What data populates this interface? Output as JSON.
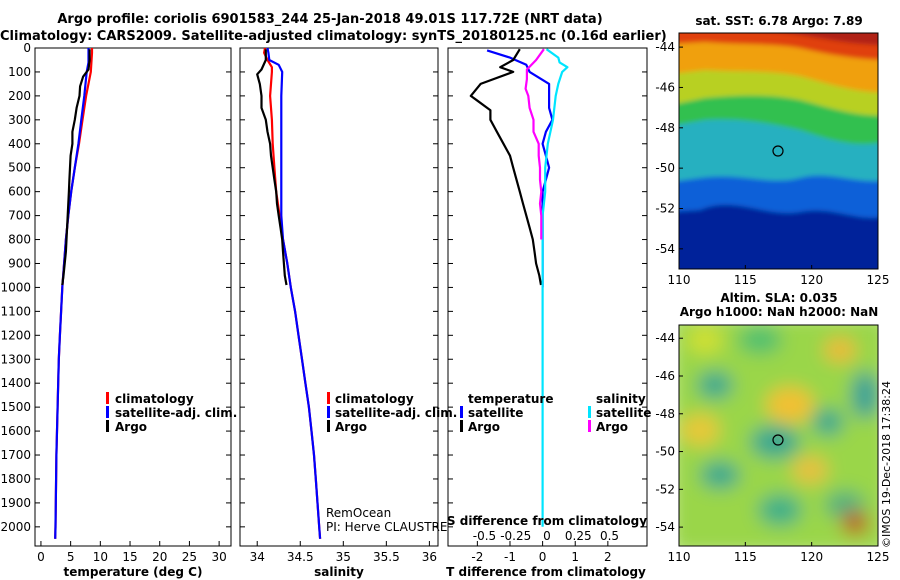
{
  "title_line1": "Argo profile: coriolis 6901583_244 25-Jan-2018 49.01S 117.72E (NRT data)",
  "title_line2": "Climatology: CARS2009. Satellite-adjusted climatology: synTS_20180125.nc (0.16d earlier)",
  "colors": {
    "climatology": "#ff0000",
    "satellite": "#0000ff",
    "argo": "#000000",
    "salinity_satellite": "#00e5ff",
    "salinity_argo": "#ff00ff"
  },
  "depth_axis": {
    "ticks": [
      0,
      100,
      200,
      300,
      400,
      500,
      600,
      700,
      800,
      900,
      1000,
      1100,
      1200,
      1300,
      1400,
      1500,
      1600,
      1700,
      1800,
      1900,
      2000
    ],
    "range": [
      0,
      2080
    ]
  },
  "chart_data": [
    {
      "type": "line",
      "id": "temperature",
      "xlabel": "temperature (deg C)",
      "xlim": [
        -1,
        32
      ],
      "xticks": [
        "0",
        "5",
        "10",
        "15",
        "20",
        "25",
        "30"
      ],
      "xtick_values": [
        0,
        5,
        10,
        15,
        20,
        25,
        30
      ],
      "legend": [
        "climatology",
        "satellite-adj. clim.",
        "Argo"
      ],
      "series": [
        {
          "name": "climatology",
          "color_key": "climatology",
          "depth": [
            0,
            20,
            60,
            100,
            200,
            300,
            400,
            500,
            600,
            700,
            800,
            900,
            1000,
            1100,
            1200,
            1300,
            1400,
            1500,
            1600,
            1700,
            1800,
            1900,
            2000,
            2050
          ],
          "values": [
            8.6,
            8.6,
            8.5,
            8.4,
            7.6,
            7.0,
            6.4,
            5.7,
            5.1,
            4.6,
            4.2,
            3.9,
            3.6,
            3.4,
            3.2,
            3.0,
            2.9,
            2.8,
            2.7,
            2.6,
            2.55,
            2.5,
            2.45,
            2.4
          ]
        },
        {
          "name": "satellite-adj. clim.",
          "color_key": "satellite",
          "depth": [
            0,
            20,
            60,
            100,
            200,
            300,
            400,
            500,
            600,
            700,
            800,
            900,
            1000,
            1100,
            1200,
            1300,
            1400,
            1500,
            1600,
            1700,
            1800,
            1900,
            2000,
            2050
          ],
          "values": [
            8.0,
            8.0,
            8.0,
            7.7,
            7.3,
            6.8,
            6.3,
            5.7,
            5.1,
            4.6,
            4.2,
            3.9,
            3.6,
            3.4,
            3.2,
            3.0,
            2.9,
            2.8,
            2.7,
            2.6,
            2.55,
            2.5,
            2.45,
            2.4
          ]
        },
        {
          "name": "Argo",
          "color_key": "argo",
          "depth": [
            5,
            50,
            90,
            120,
            160,
            200,
            250,
            300,
            350,
            400,
            450,
            500,
            550,
            600,
            650,
            700,
            750,
            800,
            850,
            900,
            950,
            990
          ],
          "values": [
            8.2,
            8.2,
            8.0,
            7.1,
            6.6,
            6.5,
            6.0,
            5.7,
            5.3,
            5.3,
            5.0,
            4.9,
            4.8,
            4.7,
            4.6,
            4.5,
            4.4,
            4.3,
            4.2,
            4.0,
            3.8,
            3.6
          ]
        }
      ]
    },
    {
      "type": "line",
      "id": "salinity",
      "xlabel": "salinity",
      "xlim": [
        33.8,
        36.1
      ],
      "xticks": [
        "34",
        "34.5",
        "35",
        "35.5",
        "36"
      ],
      "xtick_values": [
        34,
        34.5,
        35,
        35.5,
        36
      ],
      "legend": [
        "climatology",
        "satellite-adj. clim.",
        "Argo"
      ],
      "annotation": [
        "RemOcean",
        "PI: Herve CLAUSTRE"
      ],
      "series": [
        {
          "name": "climatology",
          "color_key": "climatology",
          "depth": [
            0,
            20,
            50,
            80,
            100,
            200,
            300,
            400,
            500,
            600,
            700,
            800,
            900,
            1000,
            1100,
            1200,
            1300,
            1400,
            1500,
            1600,
            1700,
            1800,
            1900,
            2000,
            2050
          ],
          "values": [
            34.09,
            34.08,
            34.12,
            34.17,
            34.17,
            34.15,
            34.17,
            34.18,
            34.2,
            34.22,
            34.26,
            34.3,
            34.35,
            34.39,
            34.44,
            34.48,
            34.52,
            34.56,
            34.6,
            34.63,
            34.66,
            34.68,
            34.7,
            34.72,
            34.73
          ]
        },
        {
          "name": "satellite-adj. clim.",
          "color_key": "satellite",
          "depth": [
            0,
            20,
            50,
            70,
            100,
            200,
            300,
            400,
            500,
            600,
            700,
            800,
            900,
            1000,
            1100,
            1200,
            1300,
            1400,
            1500,
            1600,
            1700,
            1800,
            1900,
            2000,
            2050
          ],
          "values": [
            34.12,
            34.13,
            34.14,
            34.25,
            34.29,
            34.28,
            34.28,
            34.28,
            34.28,
            34.28,
            34.28,
            34.3,
            34.35,
            34.39,
            34.44,
            34.48,
            34.52,
            34.56,
            34.6,
            34.63,
            34.66,
            34.68,
            34.7,
            34.72,
            34.73
          ]
        },
        {
          "name": "Argo",
          "color_key": "argo",
          "depth": [
            5,
            50,
            90,
            110,
            150,
            200,
            250,
            300,
            350,
            400,
            450,
            500,
            550,
            600,
            650,
            700,
            750,
            800,
            850,
            900,
            950,
            990
          ],
          "values": [
            34.1,
            34.1,
            34.05,
            34.0,
            34.03,
            34.05,
            34.05,
            34.1,
            34.12,
            34.15,
            34.16,
            34.18,
            34.2,
            34.22,
            34.23,
            34.25,
            34.27,
            34.29,
            34.3,
            34.31,
            34.32,
            34.34
          ]
        }
      ]
    },
    {
      "type": "line",
      "id": "differences",
      "xlabel": "T difference from climatology",
      "xlim": [
        -2.9,
        3.2
      ],
      "xticks": [
        "-2",
        "-1",
        "0",
        "1",
        "2"
      ],
      "xtick_values": [
        -2,
        -1,
        0,
        1,
        2
      ],
      "top_label": "S difference from climatology",
      "s_ticks": [
        "-0.5",
        "-0.25",
        "0",
        "0.25",
        "0.5"
      ],
      "s_tick_values": [
        -0.5,
        -0.25,
        0,
        0.25,
        0.5
      ],
      "legend_temperature_title": "temperature",
      "legend_salinity_title": "salinity",
      "legend_temperature": [
        "satellite",
        "Argo"
      ],
      "legend_salinity": [
        "satellite",
        "Argo"
      ],
      "series": [
        {
          "name": "temperature satellite",
          "color_key": "satellite",
          "depth": [
            10,
            40,
            70,
            100,
            150,
            200,
            250,
            300,
            350,
            400,
            450,
            500,
            600,
            700,
            800,
            900,
            1000
          ],
          "values": [
            -1.7,
            -1.0,
            -0.5,
            -0.4,
            0.2,
            0.2,
            0.2,
            0.3,
            0.1,
            0.0,
            0.1,
            0.2,
            0.0,
            0.0,
            0.0,
            0.0,
            0.0
          ]
        },
        {
          "name": "temperature Argo",
          "color_key": "argo",
          "depth": [
            5,
            50,
            80,
            100,
            150,
            200,
            220,
            260,
            300,
            350,
            400,
            450,
            500,
            550,
            600,
            650,
            700,
            750,
            800,
            850,
            900,
            950,
            990
          ],
          "values": [
            -0.7,
            -0.9,
            -1.3,
            -0.9,
            -1.9,
            -2.2,
            -2.0,
            -1.6,
            -1.6,
            -1.4,
            -1.2,
            -1.0,
            -0.9,
            -0.8,
            -0.7,
            -0.6,
            -0.5,
            -0.4,
            -0.3,
            -0.25,
            -0.2,
            -0.1,
            -0.05
          ]
        },
        {
          "name": "salinity satellite",
          "color_key": "salinity_satellite",
          "depth": [
            5,
            40,
            60,
            80,
            100,
            150,
            200,
            300,
            400,
            500,
            600,
            700,
            800,
            900,
            1000,
            1100,
            1200,
            1300,
            1400,
            1500,
            1600,
            1700,
            1800,
            1900,
            2000
          ],
          "values": [
            0.03,
            0.12,
            0.13,
            0.19,
            0.15,
            0.12,
            0.1,
            0.08,
            0.04,
            0.02,
            0.02,
            0.0,
            0.0,
            0.0,
            0.0,
            0.0,
            0.0,
            0.0,
            0.0,
            0.0,
            0.0,
            0.0,
            0.0,
            0.0,
            0.0
          ]
        },
        {
          "name": "salinity Argo",
          "color_key": "salinity_argo",
          "depth": [
            5,
            50,
            90,
            130,
            170,
            200,
            250,
            300,
            350,
            400,
            450,
            500,
            550,
            600,
            650,
            700,
            750,
            800
          ],
          "values": [
            0.01,
            -0.05,
            -0.12,
            -0.12,
            -0.13,
            -0.11,
            -0.1,
            -0.07,
            -0.07,
            -0.03,
            -0.03,
            -0.02,
            -0.02,
            -0.01,
            -0.02,
            -0.01,
            -0.01,
            -0.01
          ]
        }
      ]
    },
    {
      "type": "heatmap",
      "id": "sst_map",
      "title": "sat. SST: 6.78 Argo: 7.89",
      "xticks": [
        "110",
        "115",
        "120",
        "125"
      ],
      "xtick_values": [
        110,
        115,
        120,
        125
      ],
      "yticks": [
        "-44",
        "-46",
        "-48",
        "-50",
        "-52",
        "-54"
      ],
      "ytick_values": [
        -44,
        -46,
        -48,
        -50,
        -52,
        -54
      ],
      "xlim": [
        110,
        125
      ],
      "ylim": [
        -55,
        -43.3
      ],
      "float_position": [
        117.72,
        -49.01
      ]
    },
    {
      "type": "heatmap",
      "id": "sla_map",
      "title_line1": "Altim. SLA: 0.035",
      "title_line2": "Argo h1000: NaN h2000: NaN",
      "xticks": [
        "110",
        "115",
        "120",
        "125"
      ],
      "xtick_values": [
        110,
        115,
        120,
        125
      ],
      "yticks": [
        "-44",
        "-46",
        "-48",
        "-50",
        "-52",
        "-54"
      ],
      "ytick_values": [
        -44,
        -46,
        -48,
        -50,
        -52,
        -54
      ],
      "xlim": [
        110,
        125
      ],
      "ylim": [
        -55,
        -43.3
      ],
      "float_position": [
        117.72,
        -49.01
      ]
    }
  ],
  "credit": "©IMOS 19-Dec-2018 17:38:24"
}
